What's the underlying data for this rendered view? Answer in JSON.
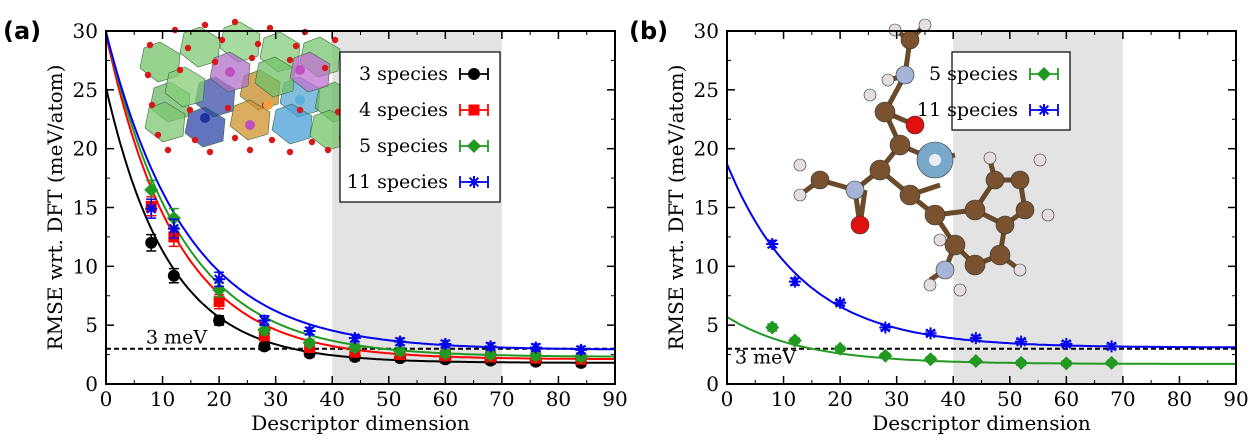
{
  "colors": {
    "black": "#000000",
    "red": "#ff0000",
    "green": "#229922",
    "blue": "#0000ee",
    "shade": "#e3e3e3"
  },
  "chart_data": [
    {
      "type": "scatter",
      "panel_label": "(a)",
      "xlabel": "Descriptor dimension",
      "ylabel": "RMSE wrt. DFT (meV/atom)",
      "xlim": [
        0,
        90
      ],
      "ylim": [
        0,
        30
      ],
      "xticks": [
        "0",
        "10",
        "20",
        "30",
        "40",
        "50",
        "60",
        "70",
        "80",
        "90"
      ],
      "yticks": [
        "0",
        "5",
        "10",
        "15",
        "20",
        "25",
        "30"
      ],
      "shaded_region": [
        40,
        70
      ],
      "reference": {
        "y": 3,
        "label": "3 meV"
      },
      "legend_position": "top-right",
      "inset": "crystal structure image (polyhedra model)",
      "series": [
        {
          "name": "3 species",
          "color": "#000000",
          "marker": "circle",
          "x": [
            8,
            12,
            20,
            28,
            36,
            44,
            52,
            60,
            68,
            76,
            84
          ],
          "y": [
            12.0,
            9.2,
            5.4,
            3.2,
            2.6,
            2.3,
            2.2,
            2.1,
            2.0,
            1.9,
            1.8
          ],
          "err": [
            0.7,
            0.6,
            0.4,
            0.3,
            0.3,
            0.3,
            0.3,
            0.3,
            0.3,
            0.3,
            0.3
          ],
          "fit": {
            "a": 23.4,
            "b": 0.09,
            "c": 1.8
          }
        },
        {
          "name": "4 species",
          "color": "#ff0000",
          "marker": "square",
          "x": [
            8,
            12,
            20,
            28,
            36,
            44,
            52,
            60,
            68,
            76,
            84
          ],
          "y": [
            15.1,
            12.5,
            7.0,
            4.1,
            3.1,
            2.7,
            2.5,
            2.4,
            2.3,
            2.2,
            2.1
          ],
          "err": [
            0.8,
            0.8,
            0.6,
            0.4,
            0.3,
            0.3,
            0.3,
            0.3,
            0.3,
            0.3,
            0.3
          ],
          "fit": {
            "a": 27.6,
            "b": 0.08,
            "c": 2.1
          }
        },
        {
          "name": "5 species",
          "color": "#229922",
          "marker": "diamond",
          "x": [
            8,
            12,
            20,
            28,
            36,
            44,
            52,
            60,
            68,
            76,
            84
          ],
          "y": [
            16.5,
            14.1,
            8.0,
            4.6,
            3.5,
            3.1,
            2.8,
            2.6,
            2.5,
            2.4,
            2.3
          ],
          "err": [
            0.8,
            0.8,
            0.6,
            0.4,
            0.3,
            0.3,
            0.3,
            0.3,
            0.3,
            0.3,
            0.3
          ],
          "fit": {
            "a": 27.7,
            "b": 0.075,
            "c": 2.3
          }
        },
        {
          "name": "11 species",
          "color": "#0000ee",
          "marker": "star",
          "x": [
            8,
            12,
            20,
            28,
            36,
            44,
            52,
            60,
            68,
            76,
            84
          ],
          "y": [
            14.9,
            13.2,
            8.9,
            5.4,
            4.5,
            3.9,
            3.6,
            3.4,
            3.2,
            3.1,
            2.9
          ],
          "err": [
            0.8,
            0.8,
            0.6,
            0.4,
            0.3,
            0.3,
            0.3,
            0.3,
            0.3,
            0.3,
            0.3
          ],
          "fit": {
            "a": 27.0,
            "b": 0.07,
            "c": 2.9
          }
        }
      ]
    },
    {
      "type": "scatter",
      "panel_label": "(b)",
      "xlabel": "Descriptor dimension",
      "ylabel": "RMSE wrt. DFT (meV/atom)",
      "xlim": [
        0,
        90
      ],
      "ylim": [
        0,
        30
      ],
      "xticks": [
        "0",
        "10",
        "20",
        "30",
        "40",
        "50",
        "60",
        "70",
        "80",
        "90"
      ],
      "yticks": [
        "0",
        "5",
        "10",
        "15",
        "20",
        "25",
        "30"
      ],
      "shaded_region": [
        40,
        70
      ],
      "reference": {
        "y": 3,
        "label": "3 meV"
      },
      "legend_position": "top-right",
      "inset": "ball-and-stick molecule image",
      "series": [
        {
          "name": "5 species",
          "color": "#229922",
          "marker": "diamond",
          "x": [
            8,
            12,
            20,
            28,
            36,
            44,
            52,
            60,
            68
          ],
          "y": [
            4.8,
            3.7,
            3.0,
            2.4,
            2.1,
            1.95,
            1.8,
            1.75,
            1.8
          ],
          "err": [
            0.3,
            0.2,
            0.2,
            0.2,
            0.2,
            0.2,
            0.2,
            0.2,
            0.2
          ],
          "fit": {
            "a": 4.0,
            "b": 0.075,
            "c": 1.7
          }
        },
        {
          "name": "11 species",
          "color": "#0000ee",
          "marker": "star",
          "x": [
            8,
            12,
            20,
            28,
            36,
            44,
            52,
            60,
            68
          ],
          "y": [
            11.9,
            8.7,
            6.9,
            4.8,
            4.3,
            3.9,
            3.6,
            3.4,
            3.2
          ],
          "err": [
            0.3,
            0.3,
            0.2,
            0.2,
            0.2,
            0.2,
            0.2,
            0.2,
            0.2
          ],
          "fit": {
            "a": 15.6,
            "b": 0.075,
            "c": 3.1
          }
        }
      ]
    }
  ]
}
